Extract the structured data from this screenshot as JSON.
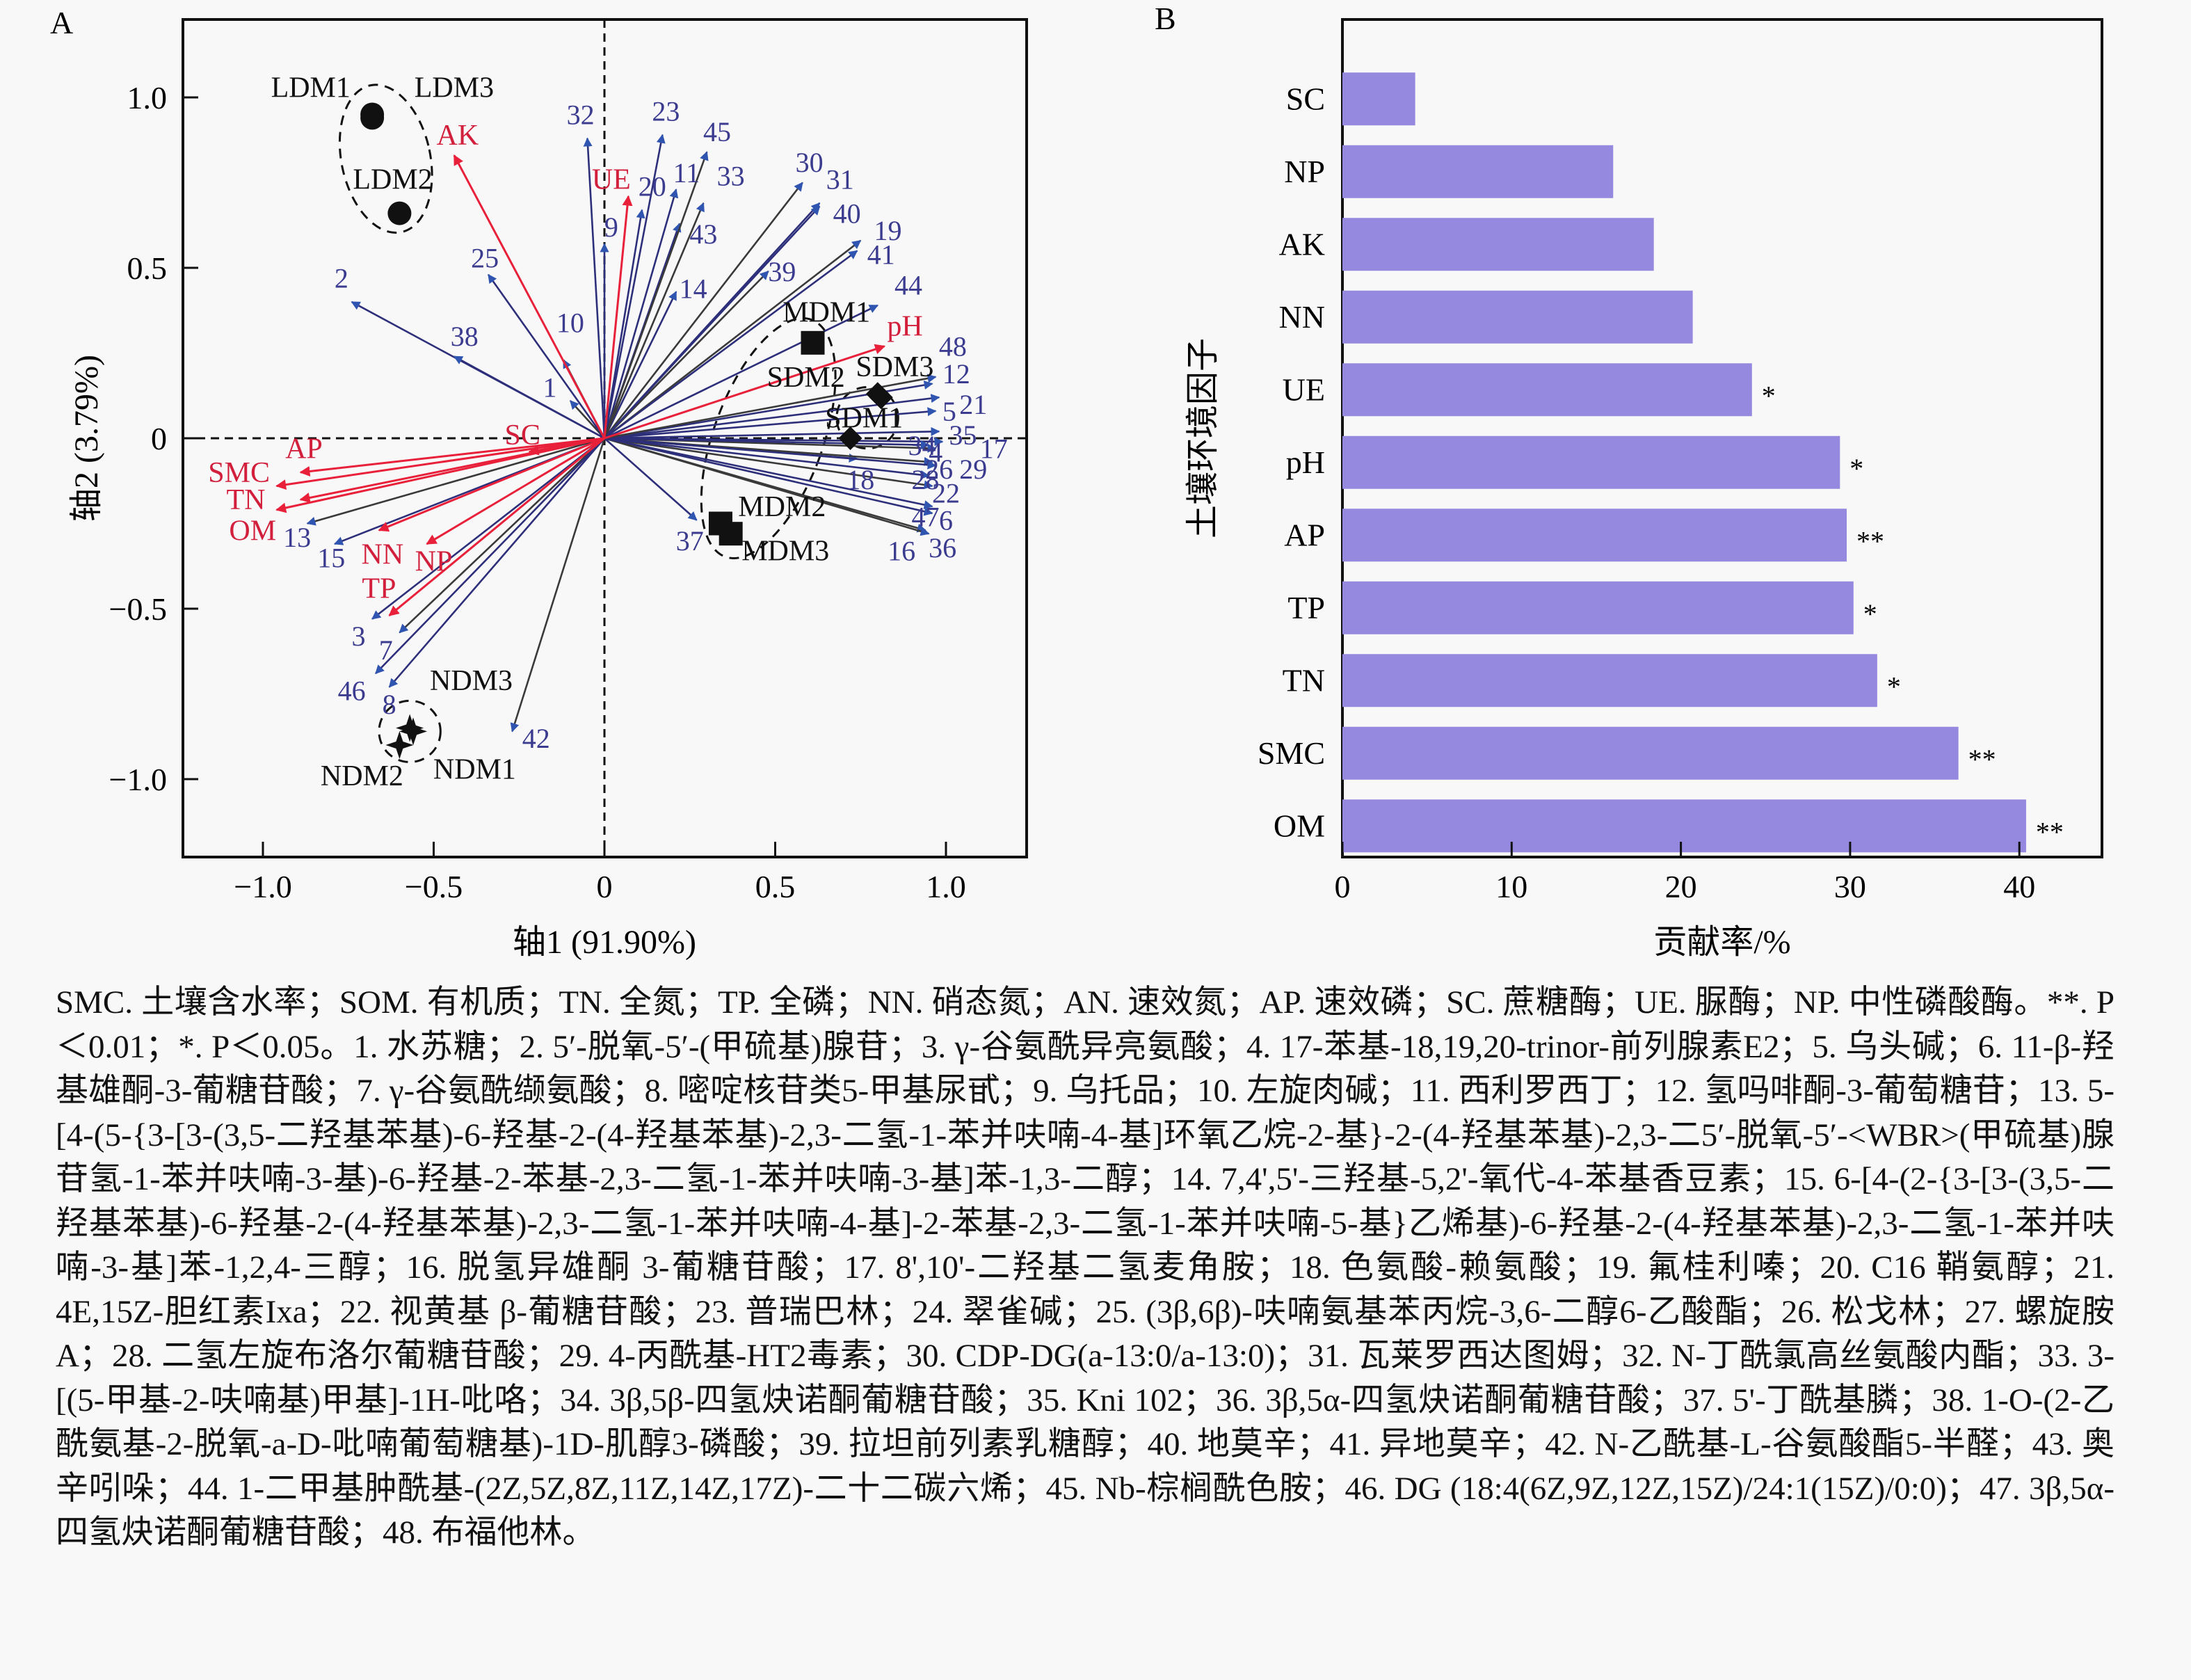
{
  "chart_data": [
    {
      "type": "scatter",
      "subtype": "rda-biplot",
      "panel_label": "A",
      "title": "",
      "xlabel": "轴1 (91.90%)",
      "ylabel": "轴2 (3.79%)",
      "xlim": [
        -1.25,
        1.23
      ],
      "ylim": [
        -1.24,
        1.23
      ],
      "xticks": [
        -1.0,
        -0.5,
        0,
        0.5,
        1.0
      ],
      "xtick_labels": [
        "−1.0",
        "−0.5",
        "0",
        "0.5",
        "1.0"
      ],
      "yticks": [
        -1.0,
        -0.5,
        0,
        0.5,
        1.0
      ],
      "ytick_labels": [
        "−1.0",
        "−0.5",
        "0",
        "0.5",
        "1.0"
      ],
      "reference_lines": {
        "x": 0,
        "y": 0,
        "style": "dashed"
      },
      "colors": {
        "env": "#e8203a",
        "metabolite_line": "#2d2f7a",
        "metabolite_head": "#2f55b0",
        "metabolite_label": "#3b3b8f",
        "sample": "#111111"
      },
      "env_vectors": [
        {
          "name": "AK",
          "x": -0.44,
          "y": 0.83,
          "lx": -0.43,
          "ly": 0.89
        },
        {
          "name": "UE",
          "x": 0.07,
          "y": 0.71,
          "lx": 0.02,
          "ly": 0.76
        },
        {
          "name": "pH",
          "x": 0.82,
          "y": 0.27,
          "lx": 0.88,
          "ly": 0.33
        },
        {
          "name": "SC",
          "x": -0.22,
          "y": -0.04,
          "lx": -0.24,
          "ly": 0.01
        },
        {
          "name": "AP",
          "x": -0.89,
          "y": -0.1,
          "lx": -0.88,
          "ly": -0.03
        },
        {
          "name": "SMC",
          "x": -0.96,
          "y": -0.14,
          "lx": -1.07,
          "ly": -0.1
        },
        {
          "name": "TN",
          "x": -0.89,
          "y": -0.18,
          "lx": -1.05,
          "ly": -0.18
        },
        {
          "name": "OM",
          "x": -0.96,
          "y": -0.21,
          "lx": -1.03,
          "ly": -0.27
        },
        {
          "name": "NN",
          "x": -0.66,
          "y": -0.27,
          "lx": -0.65,
          "ly": -0.34
        },
        {
          "name": "NP",
          "x": -0.52,
          "y": -0.31,
          "lx": -0.5,
          "ly": -0.36
        },
        {
          "name": "TP",
          "x": -0.63,
          "y": -0.52,
          "lx": -0.66,
          "ly": -0.44
        }
      ],
      "metabolite_vectors": [
        {
          "name": "1",
          "x": -0.1,
          "y": 0.11,
          "lx": -0.16,
          "ly": 0.15
        },
        {
          "name": "2",
          "x": -0.74,
          "y": 0.4,
          "lx": -0.77,
          "ly": 0.47
        },
        {
          "name": "3",
          "x": -0.68,
          "y": -0.53,
          "lx": -0.72,
          "ly": -0.58
        },
        {
          "name": "4",
          "x": 0.97,
          "y": -0.03,
          "lx": 0.97,
          "ly": -0.04
        },
        {
          "name": "5",
          "x": 0.97,
          "y": 0.08,
          "lx": 1.01,
          "ly": 0.08
        },
        {
          "name": "6",
          "x": 0.96,
          "y": -0.22,
          "lx": 1.0,
          "ly": -0.24
        },
        {
          "name": "7",
          "x": -0.6,
          "y": -0.57,
          "lx": -0.64,
          "ly": -0.62
        },
        {
          "name": "8",
          "x": -0.63,
          "y": -0.73,
          "lx": -0.63,
          "ly": -0.78
        },
        {
          "name": "9",
          "x": 0.0,
          "y": 0.57,
          "lx": 0.02,
          "ly": 0.62
        },
        {
          "name": "10",
          "x": -0.12,
          "y": 0.23,
          "lx": -0.1,
          "ly": 0.34
        },
        {
          "name": "11",
          "x": 0.21,
          "y": 0.73,
          "lx": 0.24,
          "ly": 0.78
        },
        {
          "name": "12",
          "x": 0.96,
          "y": 0.16,
          "lx": 1.03,
          "ly": 0.19
        },
        {
          "name": "13",
          "x": -0.87,
          "y": -0.25,
          "lx": -0.9,
          "ly": -0.29
        },
        {
          "name": "14",
          "x": 0.21,
          "y": 0.43,
          "lx": 0.26,
          "ly": 0.44
        },
        {
          "name": "15",
          "x": -0.79,
          "y": -0.31,
          "lx": -0.8,
          "ly": -0.35
        },
        {
          "name": "16",
          "x": 0.94,
          "y": -0.27,
          "lx": 0.87,
          "ly": -0.33
        },
        {
          "name": "17",
          "x": 0.99,
          "y": -0.01,
          "lx": 1.14,
          "ly": -0.03
        },
        {
          "name": "18",
          "x": 0.74,
          "y": -0.06,
          "lx": 0.75,
          "ly": -0.12
        },
        {
          "name": "19",
          "x": 0.75,
          "y": 0.58,
          "lx": 0.83,
          "ly": 0.61
        },
        {
          "name": "20",
          "x": 0.11,
          "y": 0.67,
          "lx": 0.14,
          "ly": 0.74
        },
        {
          "name": "21",
          "x": 0.98,
          "y": 0.12,
          "lx": 1.08,
          "ly": 0.1
        },
        {
          "name": "22",
          "x": 0.96,
          "y": -0.14,
          "lx": 1.0,
          "ly": -0.16
        },
        {
          "name": "23",
          "x": 0.17,
          "y": 0.89,
          "lx": 0.18,
          "ly": 0.96
        },
        {
          "name": "25",
          "x": -0.34,
          "y": 0.48,
          "lx": -0.35,
          "ly": 0.53
        },
        {
          "name": "26",
          "x": 0.96,
          "y": -0.07,
          "lx": 0.98,
          "ly": -0.09
        },
        {
          "name": "28",
          "x": 0.95,
          "y": -0.11,
          "lx": 0.94,
          "ly": -0.12
        },
        {
          "name": "29",
          "x": 0.97,
          "y": -0.08,
          "lx": 1.08,
          "ly": -0.09
        },
        {
          "name": "30",
          "x": 0.58,
          "y": 0.75,
          "lx": 0.6,
          "ly": 0.81
        },
        {
          "name": "31",
          "x": 0.63,
          "y": 0.69,
          "lx": 0.69,
          "ly": 0.76
        },
        {
          "name": "32",
          "x": -0.05,
          "y": 0.88,
          "lx": -0.07,
          "ly": 0.95
        },
        {
          "name": "33",
          "x": 0.29,
          "y": 0.69,
          "lx": 0.37,
          "ly": 0.77
        },
        {
          "name": "34",
          "x": 0.95,
          "y": -0.02,
          "lx": 0.93,
          "ly": -0.02
        },
        {
          "name": "35",
          "x": 0.98,
          "y": 0.02,
          "lx": 1.05,
          "ly": 0.01
        },
        {
          "name": "36",
          "x": 0.95,
          "y": -0.28,
          "lx": 0.99,
          "ly": -0.32
        },
        {
          "name": "37",
          "x": 0.27,
          "y": -0.24,
          "lx": 0.25,
          "ly": -0.3
        },
        {
          "name": "38",
          "x": -0.44,
          "y": 0.24,
          "lx": -0.41,
          "ly": 0.3
        },
        {
          "name": "39",
          "x": 0.48,
          "y": 0.49,
          "lx": 0.52,
          "ly": 0.49
        },
        {
          "name": "40",
          "x": 0.63,
          "y": 0.68,
          "lx": 0.71,
          "ly": 0.66
        },
        {
          "name": "41",
          "x": 0.74,
          "y": 0.55,
          "lx": 0.81,
          "ly": 0.54
        },
        {
          "name": "42",
          "x": -0.27,
          "y": -0.86,
          "lx": -0.2,
          "ly": -0.88
        },
        {
          "name": "43",
          "x": 0.22,
          "y": 0.63,
          "lx": 0.29,
          "ly": 0.6
        },
        {
          "name": "44",
          "x": 0.8,
          "y": 0.39,
          "lx": 0.89,
          "ly": 0.45
        },
        {
          "name": "45",
          "x": 0.3,
          "y": 0.84,
          "lx": 0.33,
          "ly": 0.9
        },
        {
          "name": "46",
          "x": -0.67,
          "y": -0.69,
          "lx": -0.74,
          "ly": -0.74
        },
        {
          "name": "47",
          "x": 0.96,
          "y": -0.2,
          "lx": 0.94,
          "ly": -0.23
        },
        {
          "name": "48",
          "x": 0.97,
          "y": 0.18,
          "lx": 1.02,
          "ly": 0.27
        }
      ],
      "samples": [
        {
          "name": "LDM1",
          "x": -0.68,
          "y": 0.94,
          "marker": "circle",
          "lx": -0.86,
          "ly": 1.03
        },
        {
          "name": "LDM3",
          "x": -0.68,
          "y": 0.95,
          "marker": "circle",
          "lx": -0.44,
          "ly": 1.03
        },
        {
          "name": "LDM2",
          "x": -0.6,
          "y": 0.66,
          "marker": "circle",
          "lx": -0.62,
          "ly": 0.76
        },
        {
          "name": "MDM1",
          "x": 0.61,
          "y": 0.28,
          "marker": "square",
          "lx": 0.65,
          "ly": 0.37
        },
        {
          "name": "MDM2",
          "x": 0.34,
          "y": -0.25,
          "marker": "square",
          "lx": 0.52,
          "ly": -0.2
        },
        {
          "name": "MDM3",
          "x": 0.37,
          "y": -0.28,
          "marker": "square",
          "lx": 0.53,
          "ly": -0.33
        },
        {
          "name": "SDM1",
          "x": 0.72,
          "y": 0.0,
          "marker": "diamond",
          "lx": 0.76,
          "ly": 0.06
        },
        {
          "name": "SDM2",
          "x": 0.8,
          "y": 0.13,
          "marker": "diamond",
          "lx": 0.59,
          "ly": 0.18
        },
        {
          "name": "SDM3",
          "x": 0.81,
          "y": 0.12,
          "marker": "diamond",
          "lx": 0.85,
          "ly": 0.21
        },
        {
          "name": "NDM1",
          "x": -0.56,
          "y": -0.86,
          "marker": "star",
          "lx": -0.38,
          "ly": -0.97
        },
        {
          "name": "NDM2",
          "x": -0.6,
          "y": -0.9,
          "marker": "star",
          "lx": -0.71,
          "ly": -0.99
        },
        {
          "name": "NDM3",
          "x": -0.57,
          "y": -0.85,
          "marker": "star",
          "lx": -0.39,
          "ly": -0.71
        }
      ],
      "ellipses": [
        {
          "group": "LDM",
          "cx": -0.64,
          "cy": 0.82,
          "rx": 0.13,
          "ry": 0.22,
          "angle": -12
        },
        {
          "group": "MDM",
          "cx": 0.48,
          "cy": 0.0,
          "rx": 0.16,
          "ry": 0.37,
          "angle": 20
        },
        {
          "group": "SDM",
          "cx": 0.77,
          "cy": 0.06,
          "rx": 0.09,
          "ry": 0.09,
          "angle": 0
        },
        {
          "group": "NDM",
          "cx": -0.57,
          "cy": -0.86,
          "rx": 0.09,
          "ry": 0.09,
          "angle": 0
        }
      ]
    },
    {
      "type": "bar",
      "orientation": "horizontal",
      "panel_label": "B",
      "title": "",
      "xlabel": "贡献率/%",
      "ylabel": "土壤环境因子",
      "xlim": [
        0,
        45
      ],
      "xticks": [
        0,
        10,
        20,
        30,
        40
      ],
      "grid": false,
      "bar_color": "#9488df",
      "categories": [
        "SC",
        "NP",
        "AK",
        "NN",
        "UE",
        "pH",
        "AP",
        "TP",
        "TN",
        "SMC",
        "OM"
      ],
      "values": [
        4.3,
        16.0,
        18.4,
        20.7,
        24.2,
        29.4,
        29.8,
        30.2,
        31.6,
        36.4,
        40.4
      ],
      "significance": [
        "",
        "",
        "",
        "",
        "*",
        "*",
        "**",
        "*",
        "*",
        "**",
        "**"
      ]
    }
  ],
  "caption": {
    "text": "SMC. 土壤含水率；SOM. 有机质；TN. 全氮；TP. 全磷；NN. 硝态氮；AN. 速效氮；AP. 速效磷；SC. 蔗糖酶；UE. 脲酶；NP. 中性磷酸酶。**. P＜0.01；*. P＜0.05。1. 水苏糖；2. 5′-脱氧-5′-(甲硫基)腺苷；3. γ-谷氨酰异亮氨酸；4. 17-苯基-18,19,20-trinor-前列腺素E2；5. 乌头碱；6. 11-β-羟基雄酮-3-葡糖苷酸；7. γ-谷氨酰缬氨酸；8. 嘧啶核苷类5-甲基尿甙；9. 乌托品；10. 左旋肉碱；11. 西利罗西丁；12. 氢吗啡酮-3-葡萄糖苷；13. 5-[4-(5-{3-[3-(3,5-二羟基苯基)-6-羟基-2-(4-羟基苯基)-2,3-二氢-1-苯并呋喃-4-基]环氧乙烷-2-基}-2-(4-羟基苯基)-2,3-二5′-脱氧-5′-<WBR>(甲硫基)腺苷氢-1-苯并呋喃-3-基)-6-羟基-2-苯基-2,3-二氢-1-苯并呋喃-3-基]苯-1,3-二醇；14. 7,4',5'-三羟基-5,2'-氧代-4-苯基香豆素；15. 6-[4-(2-{3-[3-(3,5-二羟基苯基)-6-羟基-2-(4-羟基苯基)-2,3-二氢-1-苯并呋喃-4-基]-2-苯基-2,3-二氢-1-苯并呋喃-5-基}乙烯基)-6-羟基-2-(4-羟基苯基)-2,3-二氢-1-苯并呋喃-3-基]苯-1,2,4-三醇；16. 脱氢异雄酮 3-葡糖苷酸；17. 8',10'-二羟基二氢麦角胺；18. 色氨酸-赖氨酸；19. 氟桂利嗪；20. C16 鞘氨醇；21. 4E,15Z-胆红素Ixa；22. 视黄基 β-葡糖苷酸；23. 普瑞巴林；24. 翠雀碱；25. (3β,6β)-呋喃氨基苯丙烷-3,6-二醇6-乙酸酯；26. 松戈林；27. 螺旋胺 A；28. 二氢左旋布洛尔葡糖苷酸；29. 4-丙酰基-HT2毒素；30. CDP-DG(a-13:0/a-13:0)；31. 瓦莱罗西达图姆；32. N-丁酰氯高丝氨酸内酯；33. 3-[(5-甲基-2-呋喃基)甲基]-1H-吡咯；34. 3β,5β-四氢炔诺酮葡糖苷酸；35. Kni 102；36. 3β,5α-四氢炔诺酮葡糖苷酸；37. 5'-丁酰基膦；38. 1-O-(2-乙酰氨基-2-脱氧-a-D-吡喃葡萄糖基)-1D-肌醇3-磷酸；39. 拉坦前列素乳糖醇；40. 地莫辛；41. 异地莫辛；42. N-乙酰基-L-谷氨酸酯5-半醛；43. 奥辛吲哚；44. 1-二甲基肿酰基-(2Z,5Z,8Z,11Z,14Z,17Z)-二十二碳六烯；45. Nb-棕榈酰色胺；46. DG (18:4(6Z,9Z,12Z,15Z)/24:1(15Z)/0:0)；47. 3β,5α-四氢炔诺酮葡糖苷酸；48. 布福他林。"
  }
}
